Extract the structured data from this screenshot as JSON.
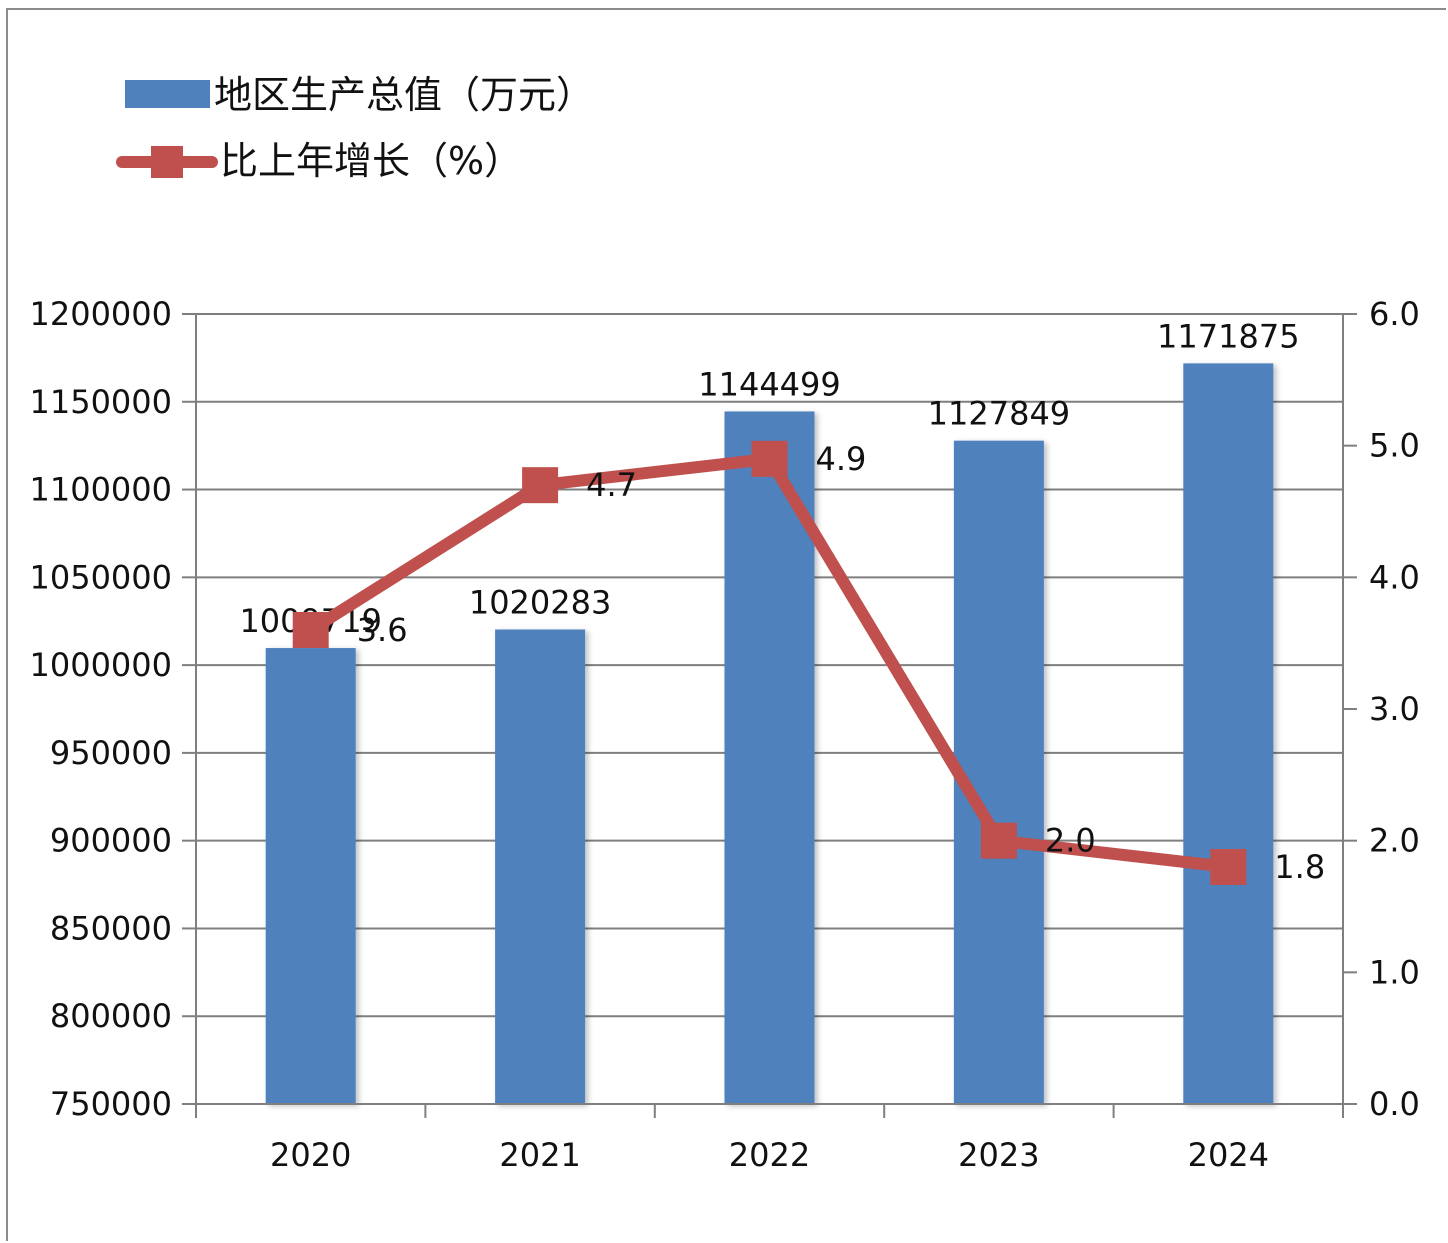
{
  "chart_data": {
    "type": "bar",
    "categories": [
      "2020",
      "2021",
      "2022",
      "2023",
      "2024"
    ],
    "series": [
      {
        "name": "地区生产总值（万元）",
        "type": "bar",
        "axis": "left",
        "values": [
          1009719,
          1020283,
          1144499,
          1127849,
          1171875
        ],
        "labels": [
          "1009719",
          "1020283",
          "1144499",
          "1127849",
          "1171875"
        ]
      },
      {
        "name": "比上年增长（%）",
        "type": "line",
        "axis": "right",
        "values": [
          3.6,
          4.7,
          4.9,
          2.0,
          1.8
        ],
        "labels": [
          "3.6",
          "4.7",
          "4.9",
          "2.0",
          "1.8"
        ]
      }
    ],
    "y_left": {
      "min": 750000,
      "max": 1200000,
      "ticks": [
        "750000",
        "800000",
        "850000",
        "900000",
        "950000",
        "1000000",
        "1050000",
        "1100000",
        "1150000",
        "1200000"
      ]
    },
    "y_right": {
      "min": 0,
      "max": 6,
      "ticks": [
        "0.0",
        "1.0",
        "2.0",
        "3.0",
        "4.0",
        "5.0",
        "6.0"
      ]
    },
    "grid": true,
    "legend_position": "top-left"
  },
  "colors": {
    "bar": "#4f81bd",
    "line": "#c0504d",
    "grid": "#7f7f7f",
    "axis": "#7f7f7f"
  }
}
